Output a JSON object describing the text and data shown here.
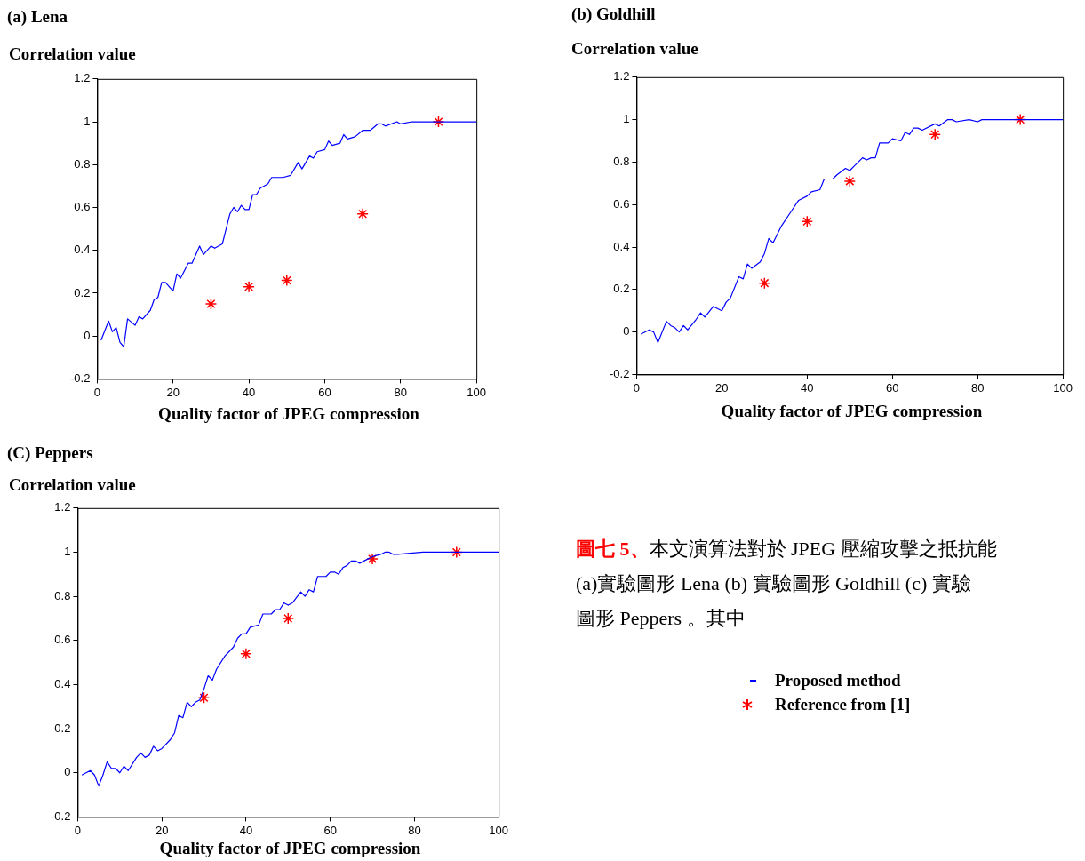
{
  "chart_data": [
    {
      "type": "line",
      "title": "(a)    Lena",
      "ylabel": "Correlation value",
      "xlabel": "Quality factor of JPEG compression",
      "xlim": [
        0,
        100
      ],
      "xticks": [
        0,
        20,
        40,
        60,
        80,
        100
      ],
      "ylim": [
        -0.2,
        1.2
      ],
      "yticks": [
        -0.2,
        0,
        0.2,
        0.4,
        0.6,
        0.8,
        1,
        1.2
      ],
      "grid": false,
      "series": [
        {
          "type": "line",
          "color": "#0000ff",
          "marker": "none",
          "x": [
            1,
            3,
            4,
            5,
            6,
            7,
            8,
            10,
            11,
            12,
            14,
            15,
            16,
            17,
            18,
            20,
            21,
            22,
            24,
            25,
            27,
            28,
            30,
            31,
            33,
            35,
            36,
            37,
            38,
            39,
            40,
            41,
            42,
            43,
            45,
            46,
            49,
            51,
            53,
            54,
            56,
            57,
            58,
            60,
            61,
            62,
            64,
            65,
            66,
            68,
            70,
            72,
            74,
            75,
            76,
            79,
            80,
            83,
            100
          ],
          "values": [
            -0.02,
            0.07,
            0.02,
            0.04,
            -0.03,
            -0.05,
            0.08,
            0.05,
            0.09,
            0.08,
            0.12,
            0.17,
            0.18,
            0.25,
            0.25,
            0.21,
            0.29,
            0.27,
            0.34,
            0.34,
            0.42,
            0.38,
            0.42,
            0.41,
            0.43,
            0.57,
            0.6,
            0.58,
            0.61,
            0.59,
            0.59,
            0.66,
            0.66,
            0.69,
            0.71,
            0.74,
            0.74,
            0.75,
            0.81,
            0.78,
            0.84,
            0.83,
            0.86,
            0.87,
            0.91,
            0.89,
            0.9,
            0.94,
            0.92,
            0.93,
            0.96,
            0.96,
            0.99,
            0.99,
            0.98,
            1,
            0.99,
            1,
            1
          ]
        },
        {
          "type": "scatter",
          "color": "#ff0000",
          "marker": "cross",
          "x": [
            30,
            40,
            50,
            70,
            90
          ],
          "values": [
            0.15,
            0.23,
            0.26,
            0.57,
            1
          ]
        }
      ]
    },
    {
      "type": "line",
      "title": "(b) Goldhill",
      "ylabel": "Correlation value",
      "xlabel": "Quality factor of JPEG compression",
      "xlim": [
        0,
        100
      ],
      "xticks": [
        0,
        20,
        40,
        60,
        80,
        100
      ],
      "ylim": [
        -0.2,
        1.2
      ],
      "yticks": [
        -0.2,
        0,
        0.2,
        0.4,
        0.6,
        0.8,
        1,
        1.2
      ],
      "grid": false,
      "series": [
        {
          "type": "line",
          "color": "#0000ff",
          "marker": "none",
          "x": [
            1,
            3,
            4,
            5,
            7,
            8,
            9,
            10,
            11,
            12,
            14,
            15,
            16,
            18,
            20,
            21,
            22,
            24,
            25,
            26,
            27,
            29,
            30,
            31,
            32,
            34,
            36,
            38,
            40,
            41,
            43,
            44,
            46,
            47,
            49,
            50,
            51,
            53,
            54,
            55,
            56,
            57,
            59,
            60,
            62,
            63,
            64,
            65,
            66,
            67,
            70,
            71,
            73,
            74,
            75,
            78,
            80,
            81,
            100
          ],
          "values": [
            -0.01,
            0.01,
            0,
            -0.05,
            0.05,
            0.03,
            0.02,
            0,
            0.03,
            0.01,
            0.06,
            0.09,
            0.07,
            0.12,
            0.1,
            0.14,
            0.16,
            0.26,
            0.25,
            0.32,
            0.3,
            0.33,
            0.37,
            0.44,
            0.42,
            0.5,
            0.56,
            0.62,
            0.64,
            0.66,
            0.67,
            0.72,
            0.72,
            0.74,
            0.77,
            0.76,
            0.78,
            0.82,
            0.81,
            0.82,
            0.82,
            0.89,
            0.89,
            0.91,
            0.9,
            0.94,
            0.93,
            0.96,
            0.96,
            0.95,
            0.98,
            0.97,
            1,
            1,
            0.99,
            1,
            0.99,
            1,
            1
          ]
        },
        {
          "type": "scatter",
          "color": "#ff0000",
          "marker": "cross",
          "x": [
            30,
            40,
            50,
            70,
            90
          ],
          "values": [
            0.23,
            0.52,
            0.71,
            0.93,
            1
          ]
        }
      ]
    },
    {
      "type": "line",
      "title": "(C) Peppers",
      "ylabel": "Correlation value",
      "xlabel": "Quality factor of JPEG compression",
      "xlim": [
        0,
        100
      ],
      "xticks": [
        0,
        20,
        40,
        60,
        80,
        100
      ],
      "ylim": [
        -0.2,
        1.2
      ],
      "yticks": [
        -0.2,
        0,
        0.2,
        0.4,
        0.6,
        0.8,
        1,
        1.2
      ],
      "grid": false,
      "legend": "right",
      "series": [
        {
          "type": "line",
          "name": "Proposed method",
          "color": "#0000ff",
          "marker": "none",
          "x": [
            1,
            3,
            4,
            5,
            6,
            7,
            8,
            9,
            10,
            11,
            12,
            14,
            15,
            16,
            17,
            18,
            19,
            20,
            22,
            23,
            24,
            25,
            26,
            27,
            28,
            29,
            30,
            31,
            32,
            33,
            35,
            37,
            38,
            39,
            40,
            41,
            43,
            44,
            46,
            47,
            48,
            49,
            50,
            51,
            53,
            54,
            55,
            56,
            57,
            59,
            60,
            61,
            62,
            63,
            64,
            65,
            66,
            67,
            69,
            70,
            72,
            73,
            74,
            75,
            76,
            82,
            84,
            100
          ],
          "values": [
            -0.01,
            0.01,
            -0.01,
            -0.06,
            -0.01,
            0.05,
            0.02,
            0.02,
            0,
            0.03,
            0.01,
            0.07,
            0.09,
            0.07,
            0.08,
            0.12,
            0.1,
            0.11,
            0.15,
            0.18,
            0.26,
            0.25,
            0.32,
            0.3,
            0.32,
            0.33,
            0.38,
            0.44,
            0.42,
            0.47,
            0.53,
            0.57,
            0.61,
            0.63,
            0.63,
            0.66,
            0.67,
            0.72,
            0.72,
            0.74,
            0.74,
            0.77,
            0.76,
            0.77,
            0.82,
            0.8,
            0.83,
            0.82,
            0.89,
            0.89,
            0.91,
            0.91,
            0.9,
            0.93,
            0.94,
            0.96,
            0.96,
            0.95,
            0.97,
            0.98,
            0.99,
            1,
            1,
            0.99,
            0.99,
            1,
            1,
            1
          ]
        },
        {
          "type": "scatter",
          "name": "Reference from [1]",
          "color": "#ff0000",
          "marker": "cross",
          "x": [
            30,
            40,
            50,
            70,
            90
          ],
          "values": [
            0.34,
            0.54,
            0.7,
            0.97,
            1
          ]
        }
      ]
    },
    {
      "type": "other",
      "title": "圖七 5、",
      "annotations": [
        "本文演算法對於 JPEG 壓縮攻擊之抵抗能",
        "(a)實驗圖形 Lena   (b)  實驗圖形 Goldhill   (c)  實驗",
        "圖形 Peppers  。其中"
      ]
    }
  ]
}
